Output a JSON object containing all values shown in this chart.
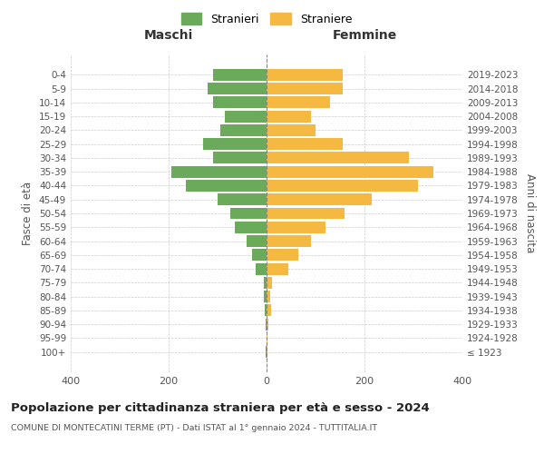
{
  "age_groups": [
    "100+",
    "95-99",
    "90-94",
    "85-89",
    "80-84",
    "75-79",
    "70-74",
    "65-69",
    "60-64",
    "55-59",
    "50-54",
    "45-49",
    "40-44",
    "35-39",
    "30-34",
    "25-29",
    "20-24",
    "15-19",
    "10-14",
    "5-9",
    "0-4"
  ],
  "birth_years": [
    "≤ 1923",
    "1924-1928",
    "1929-1933",
    "1934-1938",
    "1939-1943",
    "1944-1948",
    "1949-1953",
    "1954-1958",
    "1959-1963",
    "1964-1968",
    "1969-1973",
    "1974-1978",
    "1979-1983",
    "1984-1988",
    "1989-1993",
    "1994-1998",
    "1999-2003",
    "2004-2008",
    "2009-2013",
    "2014-2018",
    "2019-2023"
  ],
  "maschi": [
    1,
    0,
    2,
    4,
    5,
    5,
    22,
    30,
    40,
    65,
    75,
    100,
    165,
    195,
    110,
    130,
    95,
    85,
    110,
    120,
    110
  ],
  "femmine": [
    2,
    1,
    3,
    10,
    8,
    12,
    45,
    65,
    90,
    120,
    160,
    215,
    310,
    340,
    290,
    155,
    100,
    90,
    130,
    155,
    155
  ],
  "color_maschi": "#6aaa5a",
  "color_femmine": "#f5b942",
  "xlim": 400,
  "title": "Popolazione per cittadinanza straniera per età e sesso - 2024",
  "subtitle": "COMUNE DI MONTECATINI TERME (PT) - Dati ISTAT al 1° gennaio 2024 - TUTTITALIA.IT",
  "label_maschi": "Stranieri",
  "label_femmine": "Straniere",
  "xlabel_left": "Maschi",
  "xlabel_right": "Femmine",
  "ylabel_left": "Fasce di età",
  "ylabel_right": "Anni di nascita",
  "bg_color": "#ffffff",
  "grid_color": "#cccccc",
  "bar_height": 0.85
}
